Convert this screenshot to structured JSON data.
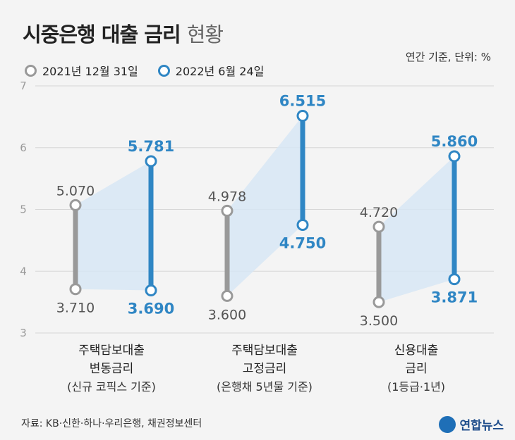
{
  "header": {
    "title": "시중은행 대출 금리",
    "title_sub": "현황",
    "unit": "연간 기준, 단위: %"
  },
  "legend": {
    "old_label": "2021년 12월 31일",
    "new_label": "2022년 6월 24일"
  },
  "footer": {
    "source": "자료: KB·신한·하나·우리은행, 채권정보센터",
    "logo_text": "연합뉴스"
  },
  "colors": {
    "old": "#999999",
    "new": "#2f86c4",
    "band": "#d7e6f4"
  },
  "chart_data": {
    "type": "range",
    "ylim": [
      3,
      7
    ],
    "yticks": [
      3,
      4,
      5,
      6,
      7
    ],
    "grid": true,
    "categories": [
      {
        "name_lines": [
          "주택담보대출",
          "변동금리"
        ],
        "note": "(신규 코픽스 기준)"
      },
      {
        "name_lines": [
          "주택담보대출",
          "고정금리"
        ],
        "note": "(은행채 5년물 기준)"
      },
      {
        "name_lines": [
          "신용대출",
          "금리"
        ],
        "note": "(1등급·1년)"
      }
    ],
    "series": [
      {
        "name": "2021년 12월 31일",
        "low": [
          3.71,
          3.6,
          3.5
        ],
        "high": [
          5.07,
          4.978,
          4.72
        ],
        "low_labels": [
          "3.710",
          "3.600",
          "3.500"
        ],
        "high_labels": [
          "5.070",
          "4.978",
          "4.720"
        ]
      },
      {
        "name": "2022년 6월 24일",
        "low": [
          3.69,
          4.75,
          3.871
        ],
        "high": [
          5.781,
          6.515,
          5.86
        ],
        "low_labels": [
          "3.690",
          "4.750",
          "3.871"
        ],
        "high_labels": [
          "5.781",
          "6.515",
          "5.860"
        ]
      }
    ]
  }
}
